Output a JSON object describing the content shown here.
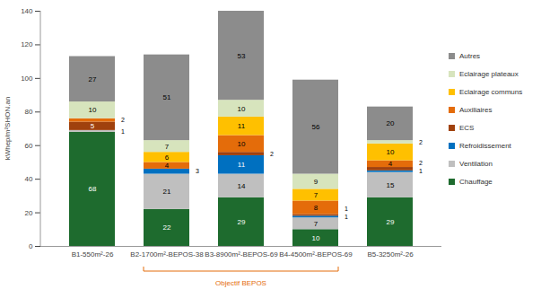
{
  "chart_data": {
    "type": "bar",
    "stacked": true,
    "data_labels": true,
    "grid": false,
    "legend": "right",
    "ylabel": "kWhep/m²SHON.an",
    "categories": [
      "B1-550m²-26",
      "B2-1700m²-BEPOS-38",
      "B3-8900m²-BEPOS-69",
      "B4-4500m²-BEPOS-69",
      "B5-3250m²-26"
    ],
    "series": [
      {
        "name": "Chauffage",
        "color": "#1e6b2e",
        "values": [
          68,
          22,
          29,
          10,
          29
        ]
      },
      {
        "name": "Ventilation",
        "color": "#bfbfbf",
        "values": [
          1,
          21,
          14,
          7,
          15
        ]
      },
      {
        "name": "Refroidissement",
        "color": "#0070c0",
        "values": [
          null,
          3,
          11,
          1,
          1
        ]
      },
      {
        "name": "ECS",
        "color": "#a0410d",
        "values": [
          5,
          null,
          2,
          1,
          2
        ]
      },
      {
        "name": "Auxiliaires",
        "color": "#e46c0a",
        "values": [
          2,
          4,
          10,
          8,
          4
        ]
      },
      {
        "name": "Eclairage communs",
        "color": "#ffc000",
        "values": [
          null,
          6,
          11,
          7,
          10
        ]
      },
      {
        "name": "Eclairage plateaux",
        "color": "#d7e4bd",
        "values": [
          10,
          7,
          10,
          9,
          2
        ]
      },
      {
        "name": "Autres",
        "color": "#8c8c8c",
        "values": [
          27,
          51,
          53,
          56,
          20
        ]
      }
    ],
    "ylim": [
      0,
      140
    ],
    "yticks": [
      0,
      20,
      40,
      60,
      80,
      100,
      120,
      140
    ],
    "annotations": [
      {
        "text": "Objectif BEPOS",
        "categories": [
          "B2-1700m²-BEPOS-38",
          "B3-8900m²-BEPOS-69",
          "B4-4500m²-BEPOS-69"
        ]
      }
    ]
  }
}
